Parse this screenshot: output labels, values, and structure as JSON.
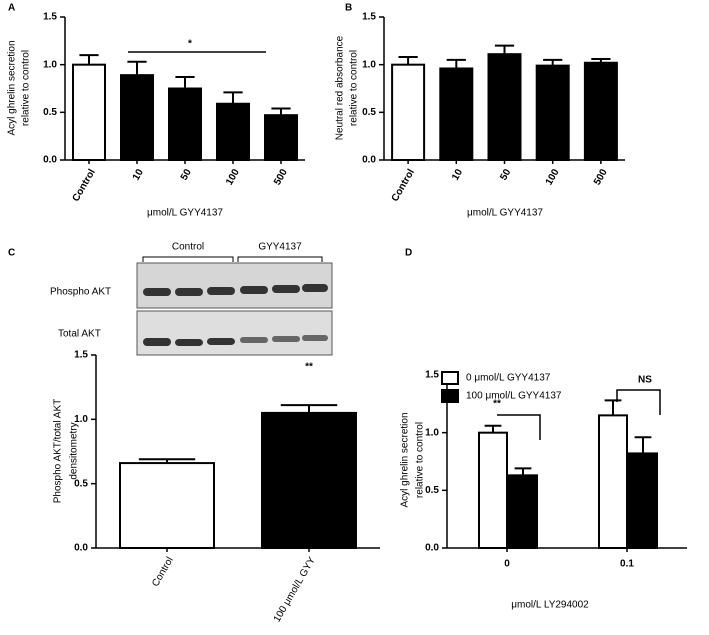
{
  "chart_data": [
    {
      "type": "bar",
      "panel": "A",
      "ylabel": [
        "Acyl ghrelin secretion",
        "relative to control"
      ],
      "xlabel": "μmol/L GYY4137",
      "categories": [
        "Control",
        "10",
        "50",
        "100",
        "500"
      ],
      "values": [
        1.0,
        0.89,
        0.75,
        0.59,
        0.47
      ],
      "errors": [
        0.1,
        0.14,
        0.12,
        0.12,
        0.07
      ],
      "colors": [
        "#ffffff",
        "#000000",
        "#000000",
        "#000000",
        "#000000"
      ],
      "ylim": [
        0,
        1.5
      ],
      "yticks": [
        {
          "value": 0,
          "label": "0.0"
        },
        {
          "value": 0.5,
          "label": "0.5"
        },
        {
          "value": 1,
          "label": "1.0"
        },
        {
          "value": 1.5,
          "label": "1.5"
        }
      ],
      "annotations": [
        "*"
      ]
    },
    {
      "type": "bar",
      "panel": "B",
      "ylabel": [
        "Neutral red absorbance",
        "relative to control"
      ],
      "xlabel": "μmol/L GYY4137",
      "categories": [
        "Control",
        "10",
        "50",
        "100",
        "500"
      ],
      "values": [
        1.0,
        0.96,
        1.11,
        0.99,
        1.02
      ],
      "errors": [
        0.08,
        0.09,
        0.09,
        0.06,
        0.04
      ],
      "colors": [
        "#ffffff",
        "#000000",
        "#000000",
        "#000000",
        "#000000"
      ],
      "ylim": [
        0,
        1.5
      ],
      "yticks": [
        {
          "value": 0,
          "label": "0.0"
        },
        {
          "value": 0.5,
          "label": "0.5"
        },
        {
          "value": 1,
          "label": "1.0"
        },
        {
          "value": 1.5,
          "label": "1.5"
        }
      ]
    },
    {
      "type": "bar",
      "panel": "C",
      "ylabel": [
        "Phospho AKT/total AKT",
        "densitometry"
      ],
      "blot": {
        "groups": [
          "Control",
          "GYY4137"
        ],
        "rows": [
          "Phospho AKT",
          "Total AKT"
        ]
      },
      "categories": [
        "Control",
        "100 μmol/L GYY"
      ],
      "values": [
        0.66,
        1.05
      ],
      "errors": [
        0.03,
        0.06
      ],
      "colors": [
        "#ffffff",
        "#000000"
      ],
      "ylim": [
        0,
        1.5
      ],
      "yticks": [
        {
          "value": 0,
          "label": "0.0"
        },
        {
          "value": 0.5,
          "label": "0.5"
        },
        {
          "value": 1,
          "label": "1.0"
        },
        {
          "value": 1.5,
          "label": "1.5"
        }
      ],
      "annotations": [
        "**"
      ]
    },
    {
      "type": "bar",
      "panel": "D",
      "ylabel": [
        "Acyl ghrelin secretion",
        "relative to control"
      ],
      "xlabel": "μmol/L LY294002",
      "categories": [
        "0",
        "0.1"
      ],
      "legend": "top-left",
      "series": [
        {
          "name": "0 μmol/L GYY4137",
          "color": "#ffffff",
          "values": [
            1.0,
            1.15
          ],
          "errors": [
            0.06,
            0.13
          ]
        },
        {
          "name": "100 μmol/L GYY4137",
          "color": "#000000",
          "values": [
            0.63,
            0.82
          ],
          "errors": [
            0.06,
            0.14
          ]
        }
      ],
      "ylim": [
        0,
        1.5
      ],
      "yticks": [
        {
          "value": 0,
          "label": "0.0"
        },
        {
          "value": 0.5,
          "label": "0.5"
        },
        {
          "value": 1,
          "label": "1.0"
        },
        {
          "value": 1.5,
          "label": "1.5"
        }
      ],
      "annotations": [
        "**",
        "NS"
      ]
    }
  ]
}
